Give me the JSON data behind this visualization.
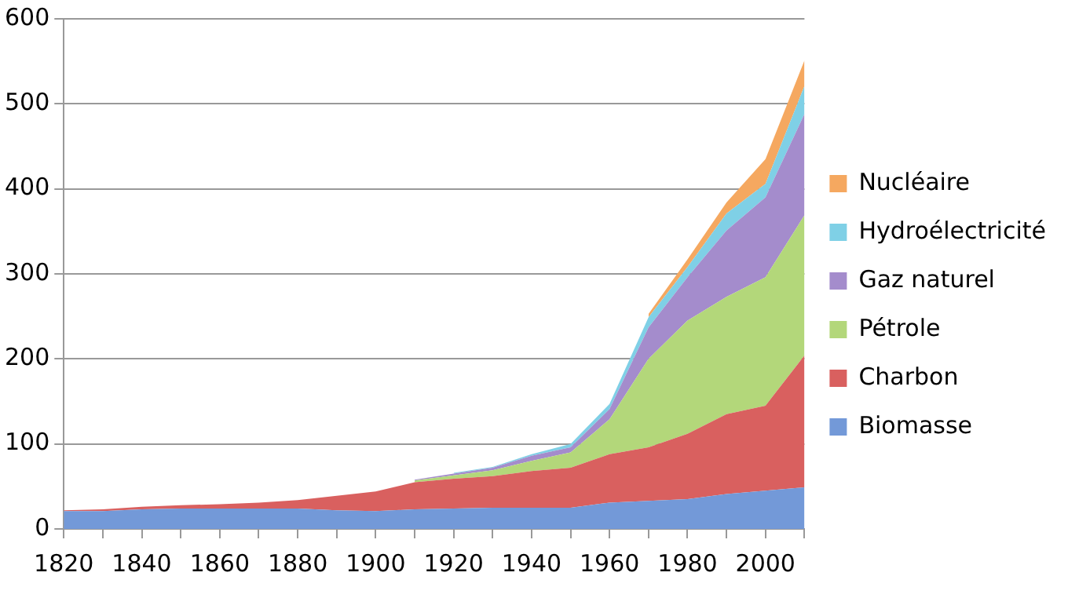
{
  "chart_data": {
    "type": "area",
    "stacked": true,
    "x": [
      1820,
      1830,
      1840,
      1850,
      1860,
      1870,
      1880,
      1890,
      1900,
      1910,
      1920,
      1930,
      1940,
      1950,
      1960,
      1970,
      1980,
      1990,
      2000,
      2010
    ],
    "series": [
      {
        "name": "Biomasse",
        "color": "#7399d8",
        "values": [
          21,
          21,
          23,
          24,
          24,
          24,
          24,
          22,
          21,
          23,
          24,
          25,
          25,
          25,
          31,
          33,
          35,
          41,
          45,
          49
        ]
      },
      {
        "name": "Charbon",
        "color": "#d9605f",
        "values": [
          1,
          2,
          3,
          4,
          5,
          7,
          10,
          17,
          23,
          32,
          35,
          37,
          43,
          47,
          57,
          63,
          77,
          94,
          100,
          155
        ]
      },
      {
        "name": "Pétrole",
        "color": "#b3d77a",
        "values": [
          null,
          null,
          null,
          null,
          null,
          null,
          null,
          null,
          null,
          2,
          4,
          7,
          12,
          18,
          41,
          104,
          133,
          138,
          151,
          165
        ]
      },
      {
        "name": "Gaz naturel",
        "color": "#a48ccc",
        "values": [
          null,
          null,
          null,
          null,
          null,
          null,
          null,
          null,
          null,
          1,
          2,
          3,
          6,
          6,
          12,
          37,
          51,
          78,
          94,
          119
        ]
      },
      {
        "name": "Hydroélectricité",
        "color": "#7fd0e6",
        "values": [
          null,
          null,
          null,
          null,
          null,
          null,
          null,
          null,
          null,
          null,
          1,
          1,
          2,
          4,
          6,
          12,
          12,
          20,
          16,
          33
        ]
      },
      {
        "name": "Nucléaire",
        "color": "#f5a860",
        "values": [
          null,
          null,
          null,
          null,
          null,
          null,
          null,
          null,
          null,
          null,
          null,
          null,
          null,
          null,
          null,
          4,
          9,
          13,
          29,
          30
        ]
      }
    ],
    "xlim": [
      1820,
      2010
    ],
    "xticks": [
      1820,
      {
        "value": 1830,
        "label": null
      },
      1840,
      {
        "value": 1850,
        "label": null
      },
      1860,
      {
        "value": 1870,
        "label": null
      },
      1880,
      {
        "value": 1890,
        "label": null
      },
      1900,
      {
        "value": 1910,
        "label": null
      },
      1920,
      {
        "value": 1930,
        "label": null
      },
      1940,
      {
        "value": 1950,
        "label": null
      },
      1960,
      {
        "value": 1970,
        "label": null
      },
      1980,
      {
        "value": 1990,
        "label": null
      },
      2000,
      {
        "value": 2010,
        "label": null
      }
    ],
    "ylim": [
      0,
      600
    ],
    "yticks": [
      0,
      100,
      200,
      300,
      400,
      500,
      600
    ],
    "grid": "y",
    "legend": "right"
  }
}
